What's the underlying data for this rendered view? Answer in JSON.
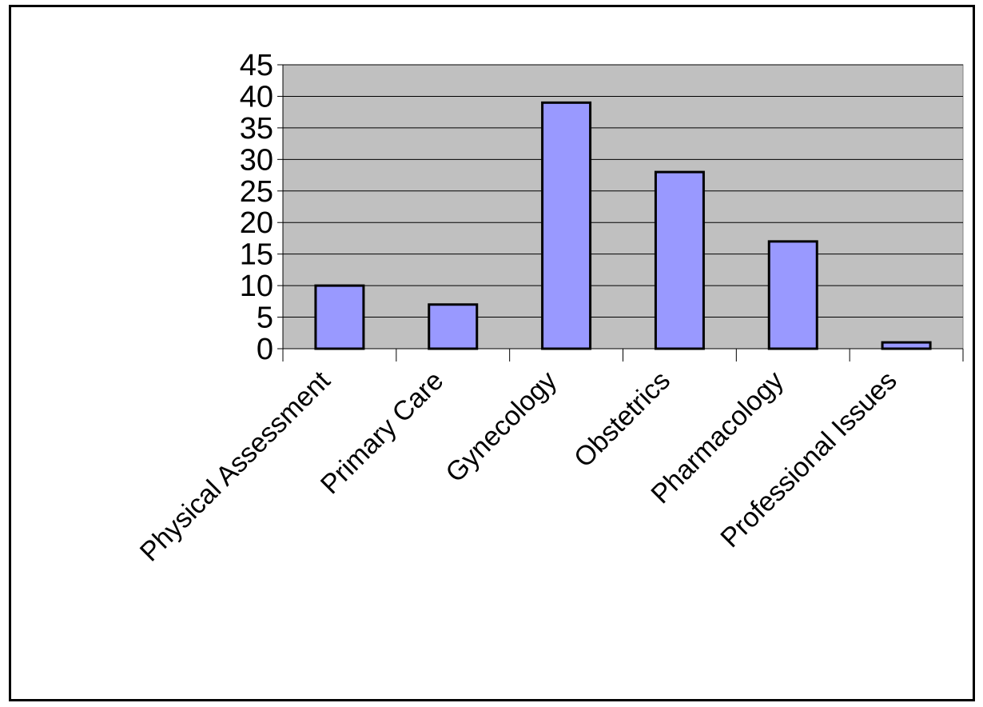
{
  "chart_data": {
    "type": "bar",
    "categories": [
      "Physical Assessment",
      "Primary Care",
      "Gynecology",
      "Obstetrics",
      "Pharmacology",
      "Professional Issues"
    ],
    "values": [
      10,
      7,
      39,
      28,
      17,
      1
    ],
    "ylim": [
      0,
      45
    ],
    "yticks": [
      0,
      5,
      10,
      15,
      20,
      25,
      30,
      35,
      40,
      45
    ],
    "grid": true,
    "legend": "none",
    "colors": {
      "bar_fill": "#9999ff",
      "bar_stroke": "#000000",
      "plot_bg": "#c0c0c0",
      "gridline": "#000000"
    }
  }
}
